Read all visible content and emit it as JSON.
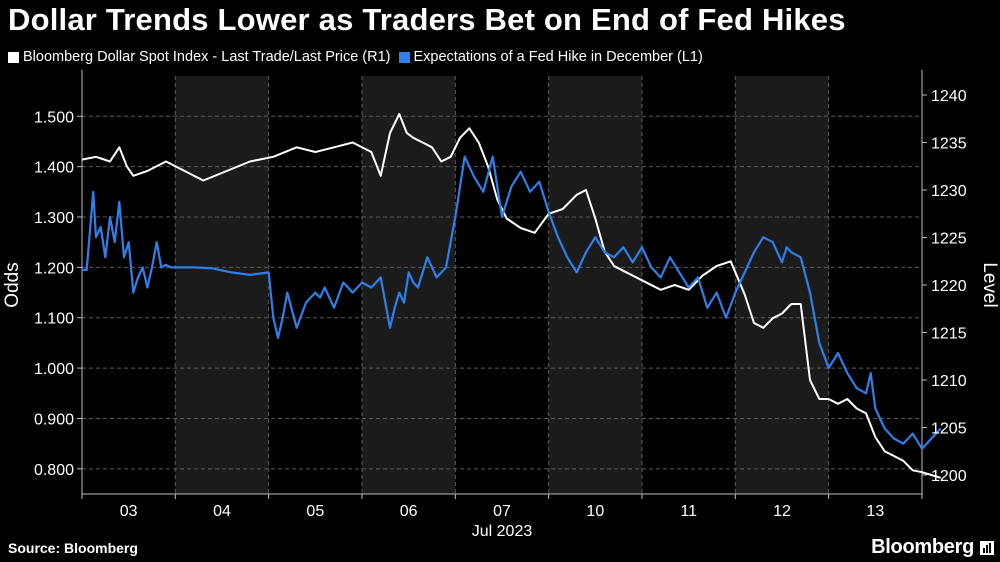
{
  "chart_data": {
    "type": "line",
    "title": "Dollar Trends Lower as Traders Bet on End of Fed Hikes",
    "x_tick_labels": [
      "03",
      "04",
      "05",
      "06",
      "07",
      "10",
      "11",
      "12",
      "13"
    ],
    "x_axis_month_label": "Jul 2023",
    "left_axis": {
      "label": "Odds",
      "range": [
        0.75,
        1.58
      ],
      "ticks": [
        "0.800",
        "0.900",
        "1.000",
        "1.100",
        "1.200",
        "1.300",
        "1.400",
        "1.500"
      ]
    },
    "right_axis": {
      "label": "Level",
      "range": [
        1198,
        1242
      ],
      "ticks": [
        "1200",
        "1205",
        "1210",
        "1215",
        "1220",
        "1225",
        "1230",
        "1235",
        "1240"
      ]
    },
    "legend_placement": "top-left",
    "series": [
      {
        "name": "Bloomberg Dollar Spot Index - Last Trade/Last Price (R1)",
        "axis": "right",
        "color": "#ffffff",
        "x": [
          0.0,
          0.15,
          0.3,
          0.4,
          0.48,
          0.55,
          0.7,
          0.9,
          1.1,
          1.3,
          1.55,
          1.8,
          2.05,
          2.3,
          2.5,
          2.7,
          2.9,
          3.1,
          3.2,
          3.3,
          3.4,
          3.48,
          3.55,
          3.65,
          3.75,
          3.85,
          3.95,
          4.05,
          4.15,
          4.25,
          4.35,
          4.45,
          4.55,
          4.7,
          4.85,
          5.0,
          5.15,
          5.3,
          5.4,
          5.5,
          5.6,
          5.7,
          5.8,
          6.0,
          6.2,
          6.35,
          6.5,
          6.65,
          6.8,
          6.95,
          7.1,
          7.2,
          7.3,
          7.4,
          7.5,
          7.6,
          7.7,
          7.8,
          7.9,
          8.0,
          8.1,
          8.2,
          8.3,
          8.4,
          8.5,
          8.6,
          8.7,
          8.8,
          8.9,
          9.0,
          9.1,
          9.2
        ],
        "values": [
          1233.2,
          1233.5,
          1233.0,
          1234.5,
          1232.5,
          1231.5,
          1232.0,
          1233.0,
          1232.0,
          1231.0,
          1232.0,
          1233.0,
          1233.5,
          1234.5,
          1234.0,
          1234.5,
          1235.0,
          1234.0,
          1231.5,
          1236.0,
          1238.0,
          1236.0,
          1235.5,
          1235.0,
          1234.5,
          1233.0,
          1233.5,
          1235.5,
          1236.5,
          1235.0,
          1232.5,
          1229.0,
          1227.0,
          1226.0,
          1225.5,
          1227.5,
          1228.0,
          1229.5,
          1230.0,
          1227.0,
          1223.5,
          1222.0,
          1221.5,
          1220.5,
          1219.5,
          1220.0,
          1219.5,
          1221.0,
          1222.0,
          1222.5,
          1219.0,
          1216.0,
          1215.5,
          1216.5,
          1217.0,
          1218.0,
          1218.0,
          1210.0,
          1208.0,
          1208.0,
          1207.5,
          1208.0,
          1207.0,
          1206.5,
          1204.0,
          1202.5,
          1202.0,
          1201.5,
          1200.5,
          1200.3,
          1200.0,
          1199.7
        ]
      },
      {
        "name": "Expectations of a Fed Hike in December (L1)",
        "axis": "left",
        "color": "#2f7fe8",
        "x": [
          0.0,
          0.05,
          0.12,
          0.15,
          0.2,
          0.25,
          0.3,
          0.35,
          0.4,
          0.45,
          0.5,
          0.55,
          0.6,
          0.65,
          0.7,
          0.75,
          0.8,
          0.85,
          0.9,
          0.95,
          1.0,
          1.2,
          1.4,
          1.6,
          1.8,
          2.0,
          2.05,
          2.1,
          2.15,
          2.2,
          2.3,
          2.4,
          2.5,
          2.55,
          2.6,
          2.7,
          2.8,
          2.9,
          3.0,
          3.1,
          3.2,
          3.3,
          3.35,
          3.4,
          3.45,
          3.5,
          3.55,
          3.6,
          3.7,
          3.8,
          3.9,
          4.0,
          4.1,
          4.2,
          4.3,
          4.4,
          4.5,
          4.6,
          4.7,
          4.8,
          4.9,
          5.0,
          5.1,
          5.2,
          5.3,
          5.4,
          5.5,
          5.6,
          5.7,
          5.8,
          5.9,
          6.0,
          6.1,
          6.2,
          6.3,
          6.4,
          6.5,
          6.6,
          6.7,
          6.8,
          6.9,
          7.0,
          7.1,
          7.2,
          7.3,
          7.4,
          7.5,
          7.55,
          7.6,
          7.7,
          7.8,
          7.9,
          8.0,
          8.1,
          8.2,
          8.3,
          8.4,
          8.45,
          8.5,
          8.6,
          8.7,
          8.8,
          8.9,
          9.0,
          9.1,
          9.2
        ],
        "values": [
          1.195,
          1.195,
          1.35,
          1.26,
          1.28,
          1.22,
          1.3,
          1.25,
          1.33,
          1.22,
          1.25,
          1.15,
          1.18,
          1.2,
          1.16,
          1.2,
          1.25,
          1.2,
          1.205,
          1.2,
          1.2,
          1.2,
          1.198,
          1.19,
          1.185,
          1.19,
          1.1,
          1.06,
          1.1,
          1.15,
          1.08,
          1.13,
          1.15,
          1.14,
          1.16,
          1.12,
          1.17,
          1.15,
          1.17,
          1.16,
          1.18,
          1.08,
          1.12,
          1.15,
          1.13,
          1.19,
          1.17,
          1.16,
          1.22,
          1.18,
          1.2,
          1.3,
          1.42,
          1.38,
          1.35,
          1.42,
          1.3,
          1.36,
          1.39,
          1.35,
          1.37,
          1.31,
          1.26,
          1.22,
          1.19,
          1.23,
          1.26,
          1.23,
          1.22,
          1.24,
          1.21,
          1.24,
          1.2,
          1.18,
          1.22,
          1.19,
          1.16,
          1.18,
          1.12,
          1.15,
          1.1,
          1.15,
          1.19,
          1.23,
          1.26,
          1.25,
          1.21,
          1.24,
          1.23,
          1.22,
          1.15,
          1.05,
          1.0,
          1.03,
          0.99,
          0.96,
          0.95,
          0.99,
          0.92,
          0.88,
          0.86,
          0.85,
          0.87,
          0.84,
          0.86,
          0.88
        ]
      }
    ]
  },
  "footer": {
    "source": "Source: Bloomberg",
    "brand": "Bloomberg"
  }
}
